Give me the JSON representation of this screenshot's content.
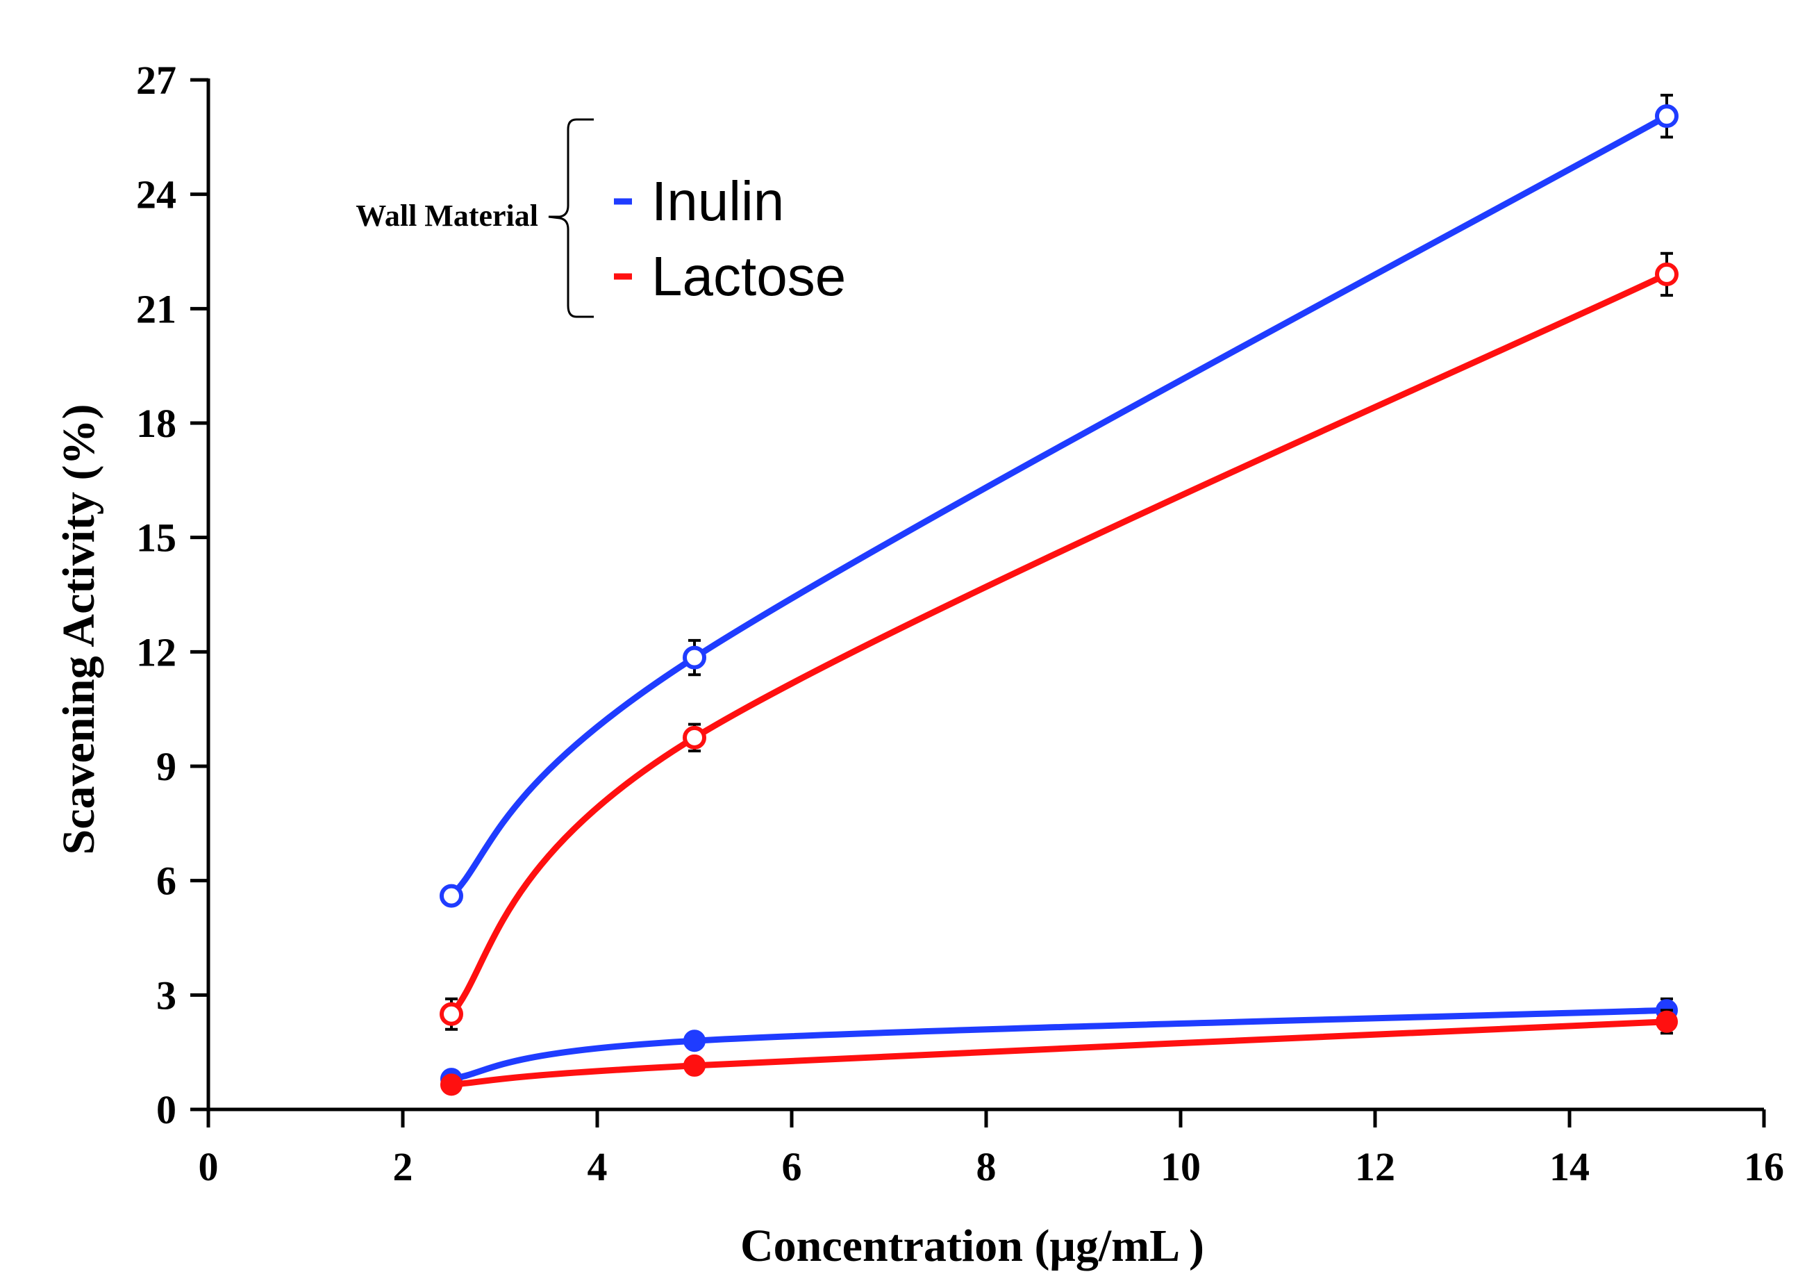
{
  "chart_data": {
    "type": "line",
    "title": "",
    "xlabel": "Concentration (μg/mL )",
    "ylabel": "Scavening Activity (%)",
    "xlim": [
      0,
      16
    ],
    "ylim": [
      0,
      27
    ],
    "xticks": [
      0,
      2,
      4,
      6,
      8,
      10,
      12,
      14,
      16
    ],
    "yticks": [
      0,
      3,
      6,
      9,
      12,
      15,
      18,
      21,
      24,
      27
    ],
    "grid": false,
    "legend": {
      "group_label": "Wall Material",
      "entries": [
        {
          "name": "Inulin",
          "color": "#1f3cff"
        },
        {
          "name": "Lactose",
          "color": "#ff1010"
        }
      ],
      "placement": "top-left"
    },
    "x": [
      2.5,
      5,
      15
    ],
    "series": [
      {
        "name": "Inulin (open markers)",
        "group": "Inulin",
        "color": "#1f3cff",
        "marker": "open",
        "values": [
          5.6,
          11.85,
          26.05
        ],
        "errors": [
          0,
          0.45,
          0.55
        ]
      },
      {
        "name": "Lactose (open markers)",
        "group": "Lactose",
        "color": "#ff1010",
        "marker": "open",
        "values": [
          2.5,
          9.75,
          21.9
        ],
        "errors": [
          0.4,
          0.35,
          0.55
        ]
      },
      {
        "name": "Inulin (filled markers)",
        "group": "Inulin",
        "color": "#1f3cff",
        "marker": "filled",
        "values": [
          0.8,
          1.8,
          2.6
        ],
        "errors": [
          0,
          0,
          0.3
        ]
      },
      {
        "name": "Lactose (filled markers)",
        "group": "Lactose",
        "color": "#ff1010",
        "marker": "filled",
        "values": [
          0.65,
          1.15,
          2.3
        ],
        "errors": [
          0,
          0,
          0.3
        ]
      }
    ]
  }
}
